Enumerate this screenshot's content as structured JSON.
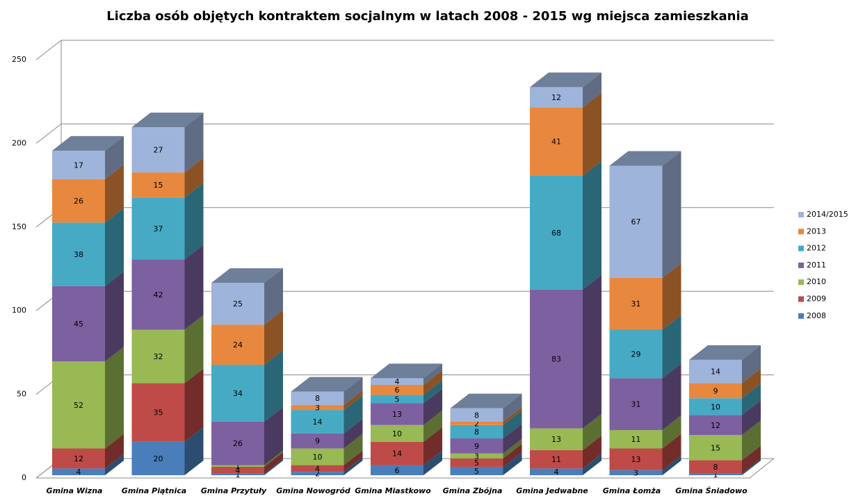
{
  "chart_data": {
    "type": "bar3d_stacked",
    "title": "Liczba osób objętych kontraktem socjalnym w latach 2008 - 2015 wg miejsca zamieszkania",
    "categories": [
      "Gmina Wizna",
      "Gmina Piątnica",
      "Gmina Przytuły",
      "Gmina Nowogród",
      "Gmina Miastkowo",
      "Gmina Zbójna",
      "Gmina Jedwabne",
      "Gmina Łomża",
      "Gmina Śniadowo"
    ],
    "series": [
      {
        "name": "2008",
        "color": "#4a7ebb",
        "values": [
          4,
          20,
          1,
          2,
          6,
          5,
          4,
          3,
          1
        ]
      },
      {
        "name": "2009",
        "color": "#be4b48",
        "values": [
          12,
          35,
          4,
          4,
          14,
          5,
          11,
          13,
          8
        ]
      },
      {
        "name": "2010",
        "color": "#98b954",
        "values": [
          52,
          32,
          1,
          10,
          10,
          3,
          13,
          11,
          15
        ]
      },
      {
        "name": "2011",
        "color": "#7d60a0",
        "values": [
          45,
          42,
          26,
          9,
          13,
          9,
          83,
          31,
          12
        ]
      },
      {
        "name": "2012",
        "color": "#46aac5",
        "values": [
          38,
          37,
          34,
          14,
          5,
          8,
          68,
          29,
          10
        ]
      },
      {
        "name": "2013",
        "color": "#e8883e",
        "values": [
          26,
          15,
          24,
          3,
          6,
          2,
          41,
          31,
          9
        ]
      },
      {
        "name": "2014/2015",
        "color": "#9fb4da",
        "values": [
          17,
          27,
          25,
          8,
          4,
          8,
          12,
          67,
          14
        ]
      }
    ],
    "ylim": [
      0,
      250
    ],
    "yticks": [
      0,
      50,
      100,
      150,
      200,
      250
    ],
    "grid": true,
    "legend": "right"
  }
}
